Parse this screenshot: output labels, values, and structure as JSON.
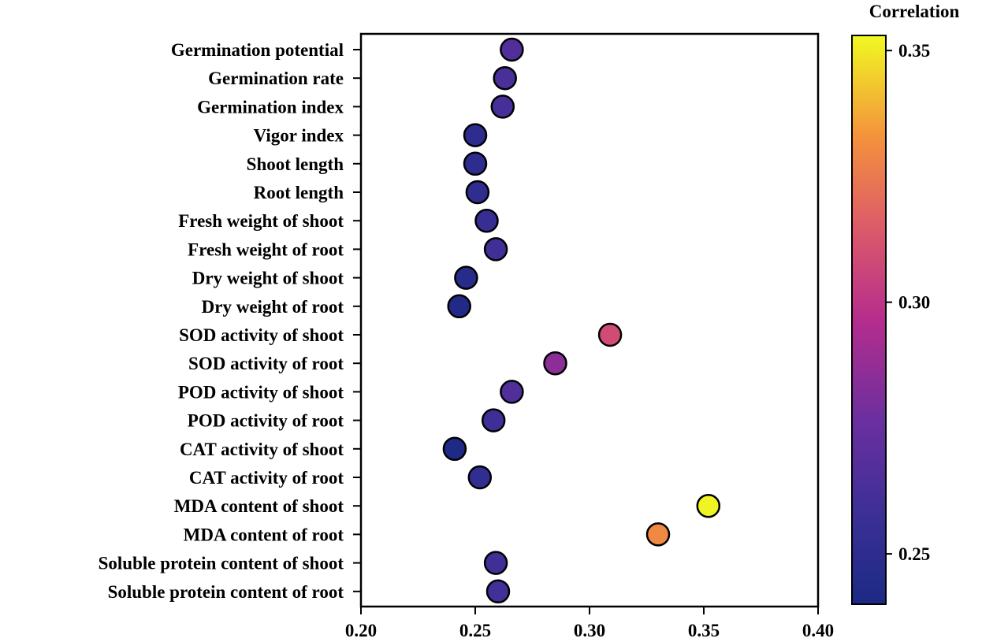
{
  "chart_data": {
    "type": "scatter",
    "orientation": "horizontal-dot",
    "categories": [
      "Germination potential",
      "Germination rate",
      "Germination index",
      "Vigor index",
      "Shoot length",
      "Root length",
      "Fresh weight of shoot",
      "Fresh weight of root",
      "Dry weight of shoot",
      "Dry weight of root",
      "SOD activity of shoot",
      "SOD activity of root",
      "POD activity of shoot",
      "POD activity of root",
      "CAT activity of shoot",
      "CAT activity of root",
      "MDA content of shoot",
      "MDA content of root",
      "Soluble protein content of shoot",
      "Soluble protein content of root"
    ],
    "values": [
      0.266,
      0.263,
      0.262,
      0.25,
      0.25,
      0.251,
      0.255,
      0.259,
      0.246,
      0.243,
      0.309,
      0.285,
      0.266,
      0.258,
      0.241,
      0.252,
      0.352,
      0.33,
      0.259,
      0.26
    ],
    "xlim": [
      0.2,
      0.4
    ],
    "xticks": [
      "0.20",
      "0.25",
      "0.30",
      "0.35",
      "0.40"
    ],
    "xlabel": "",
    "ylabel": "",
    "title": "",
    "grid": false,
    "colorbar": {
      "title": "Correlation",
      "range": [
        0.24,
        0.353
      ],
      "ticks": [
        0.25,
        0.3,
        0.35
      ],
      "tick_labels": [
        "0.25",
        "0.30",
        "0.35"
      ],
      "colormap": "plasma"
    }
  }
}
